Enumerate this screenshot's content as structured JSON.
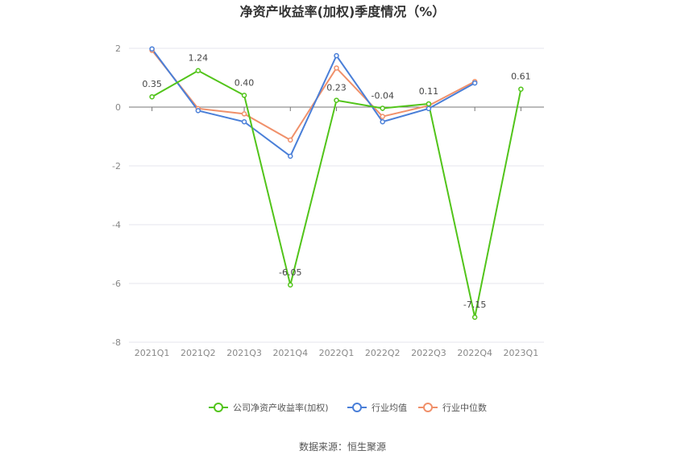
{
  "chart_data": {
    "type": "line",
    "title": "净资产收益率(加权)季度情况（%）",
    "categories": [
      "2021Q1",
      "2021Q2",
      "2021Q3",
      "2021Q4",
      "2022Q1",
      "2022Q2",
      "2022Q3",
      "2022Q4",
      "2023Q1"
    ],
    "ylim": [
      -8,
      2
    ],
    "yticks": [
      2,
      0,
      -2,
      -4,
      -6,
      -8
    ],
    "grid": true,
    "legend_position": "bottom",
    "series": [
      {
        "name": "公司净资产收益率(加权)",
        "color": "#52c41a",
        "values": [
          0.35,
          1.24,
          0.4,
          -6.05,
          0.23,
          -0.04,
          0.11,
          -7.15,
          0.61
        ],
        "labels": [
          "0.35",
          "1.24",
          "0.40",
          "-6.05",
          "0.23",
          "-0.04",
          "0.11",
          "-7.15",
          "0.61"
        ]
      },
      {
        "name": "行业均值",
        "color": "#4a7fd8",
        "values": [
          1.98,
          -0.12,
          -0.5,
          -1.67,
          1.75,
          -0.5,
          -0.05,
          0.82,
          null
        ]
      },
      {
        "name": "行业中位数",
        "color": "#f0906a",
        "values": [
          1.93,
          -0.05,
          -0.23,
          -1.12,
          1.33,
          -0.32,
          0.05,
          0.87,
          null
        ]
      }
    ],
    "source": "数据来源：恒生聚源"
  }
}
